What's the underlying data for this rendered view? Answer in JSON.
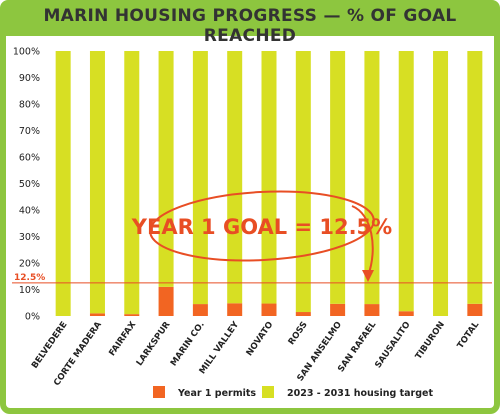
{
  "chart_data": {
    "type": "bar",
    "title": "MARIN HOUSING PROGRESS  —  % OF GOAL REACHED",
    "categories": [
      "BELVEDERE",
      "CORTE MADERA",
      "FAIRFAX",
      "LARKSPUR",
      "MARIN CO.",
      "MILL VALLEY",
      "NOVATO",
      "ROSS",
      "SAN ANSELMO",
      "SAN RAFAEL",
      "SAUSALITO",
      "TIBURON",
      "TOTAL"
    ],
    "series": [
      {
        "name": "Year 1 permits",
        "color": "#f26522",
        "values": [
          0,
          1,
          0.7,
          11,
          4.5,
          4.8,
          4.7,
          1.5,
          4.6,
          4.5,
          1.8,
          0,
          4.6
        ]
      },
      {
        "name": "2023 - 2031 housing target",
        "color": "#d7df23",
        "values": [
          100,
          99,
          99.3,
          89,
          95.5,
          95.2,
          95.3,
          98.5,
          95.4,
          95.5,
          98.2,
          100,
          95.4
        ]
      }
    ],
    "stacked": true,
    "ylim": [
      0,
      100
    ],
    "yticks": [
      "0%",
      "10%",
      "20%",
      "30%",
      "40%",
      "50%",
      "60%",
      "70%",
      "80%",
      "90%",
      "100%"
    ],
    "reference_line": {
      "value": 12.5,
      "label": "12.5%"
    },
    "annotation": "YEAR 1 GOAL = 12.5%",
    "grid": false,
    "legend_position": "bottom"
  },
  "colors": {
    "frame": "#8dc63f",
    "permits": "#f26522",
    "target": "#d7df23",
    "callout": "#e84e24"
  }
}
